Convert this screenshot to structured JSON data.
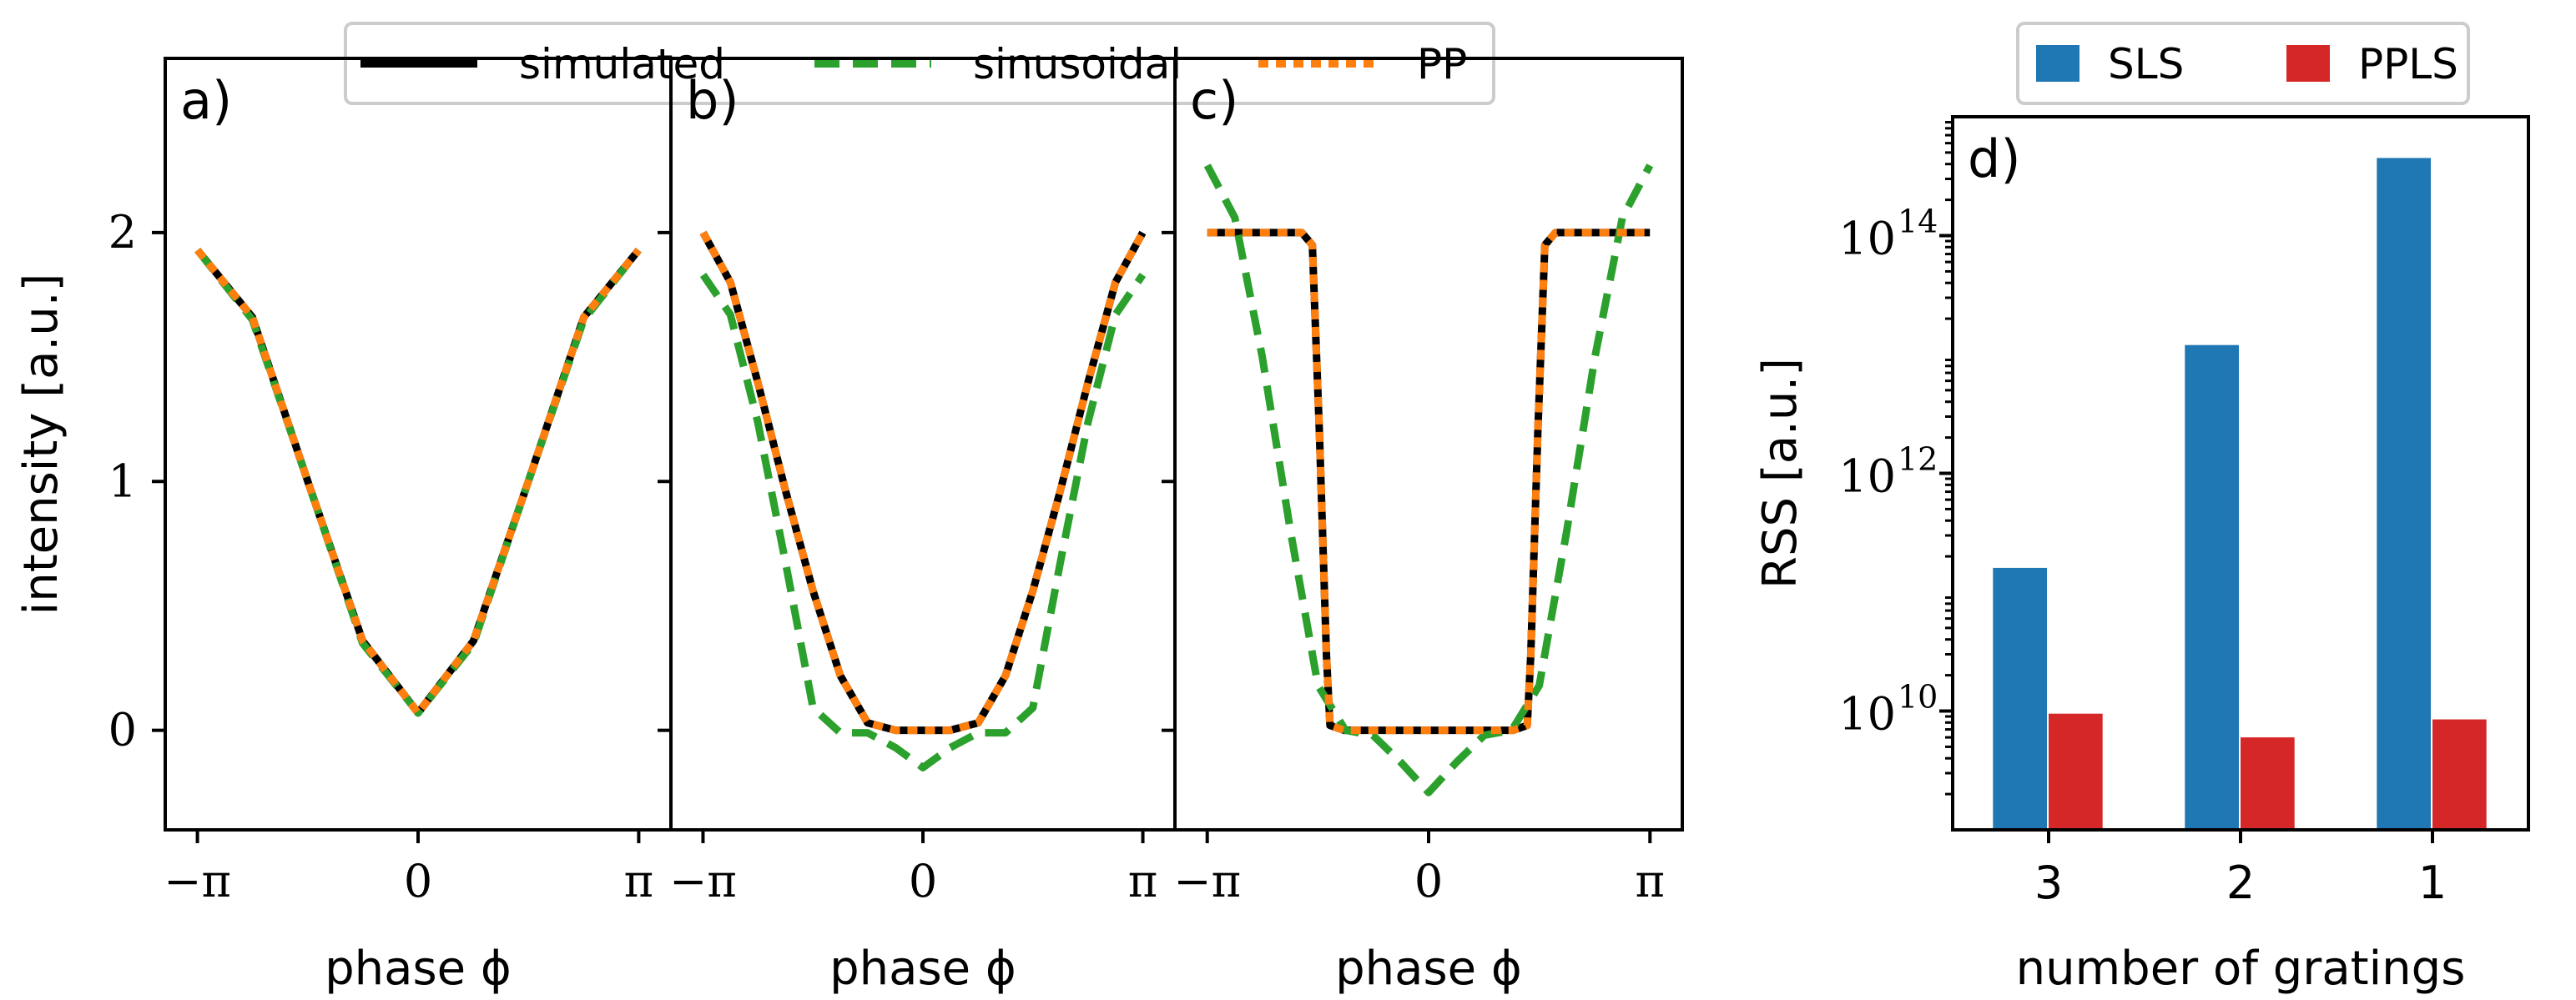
{
  "figure": {
    "left_legend": [
      {
        "label": "simulated",
        "color": "#000000",
        "style": "solid"
      },
      {
        "label": "sinusoidal",
        "color": "#2ca02c",
        "style": "dashed"
      },
      {
        "label": "PP",
        "color": "#ff7f0e",
        "style": "dotted"
      }
    ],
    "right_legend": [
      {
        "label": "SLS",
        "color": "#1f77b4"
      },
      {
        "label": "PPLS",
        "color": "#d62728"
      }
    ]
  },
  "chart_data": [
    {
      "type": "line",
      "panel": "a)",
      "xlabel": "phase ϕ",
      "ylabel": "intensity [a.u.]",
      "xlim": [
        -3.6,
        3.6
      ],
      "ylim": [
        -0.4,
        2.7
      ],
      "xticks": [
        -3.14159,
        0,
        3.14159
      ],
      "xticklabels": [
        "−π",
        "0",
        "π"
      ],
      "yticks": [
        0,
        1,
        2
      ],
      "yticklabels": [
        "0",
        "1",
        "2"
      ],
      "legend_position": "top",
      "series": [
        {
          "name": "simulated",
          "x": [
            -3.14,
            -2.36,
            -1.57,
            -0.79,
            0,
            0.79,
            1.57,
            2.36,
            3.14
          ],
          "y": [
            1.93,
            1.66,
            1.0,
            0.36,
            0.07,
            0.36,
            1.0,
            1.66,
            1.93
          ]
        },
        {
          "name": "sinusoidal",
          "x": [
            -3.14,
            -2.36,
            -1.57,
            -0.79,
            0,
            0.79,
            1.57,
            2.36,
            3.14
          ],
          "y": [
            1.93,
            1.65,
            1.0,
            0.35,
            0.07,
            0.35,
            1.0,
            1.65,
            1.93
          ]
        },
        {
          "name": "PP",
          "x": [
            -3.14,
            -2.36,
            -1.57,
            -0.79,
            0,
            0.79,
            1.57,
            2.36,
            3.14
          ],
          "y": [
            1.93,
            1.66,
            1.0,
            0.36,
            0.07,
            0.36,
            1.0,
            1.66,
            1.93
          ]
        }
      ]
    },
    {
      "type": "line",
      "panel": "b)",
      "xlabel": "phase ϕ",
      "xlim": [
        -3.6,
        3.6
      ],
      "ylim": [
        -0.4,
        2.7
      ],
      "xticks": [
        -3.14159,
        0,
        3.14159
      ],
      "xticklabels": [
        "−π",
        "0",
        "π"
      ],
      "yticks": [
        0,
        1,
        2
      ],
      "series": [
        {
          "name": "simulated",
          "x": [
            -3.14,
            -2.75,
            -2.36,
            -1.96,
            -1.57,
            -1.18,
            -0.79,
            -0.39,
            0,
            0.39,
            0.79,
            1.18,
            1.57,
            1.96,
            2.36,
            2.75,
            3.14
          ],
          "y": [
            2.0,
            1.8,
            1.4,
            0.96,
            0.56,
            0.22,
            0.03,
            0.0,
            0.0,
            0.0,
            0.03,
            0.22,
            0.56,
            0.96,
            1.4,
            1.8,
            2.0
          ]
        },
        {
          "name": "sinusoidal",
          "x": [
            -3.14,
            -2.75,
            -2.36,
            -1.96,
            -1.57,
            -1.18,
            -0.79,
            -0.39,
            0,
            0.39,
            0.79,
            1.18,
            1.57,
            1.96,
            2.36,
            2.75,
            3.14
          ],
          "y": [
            1.83,
            1.67,
            1.24,
            0.67,
            0.09,
            -0.01,
            -0.01,
            -0.07,
            -0.15,
            -0.07,
            -0.01,
            -0.01,
            0.09,
            0.67,
            1.24,
            1.67,
            1.83
          ]
        },
        {
          "name": "PP",
          "x": [
            -3.14,
            -2.75,
            -2.36,
            -1.96,
            -1.57,
            -1.18,
            -0.79,
            -0.39,
            0,
            0.39,
            0.79,
            1.18,
            1.57,
            1.96,
            2.36,
            2.75,
            3.14
          ],
          "y": [
            2.0,
            1.8,
            1.4,
            0.96,
            0.56,
            0.22,
            0.03,
            0.0,
            0.0,
            0.0,
            0.03,
            0.22,
            0.56,
            0.96,
            1.4,
            1.8,
            2.0
          ]
        }
      ]
    },
    {
      "type": "line",
      "panel": "c)",
      "xlabel": "phase ϕ",
      "xlim": [
        -3.6,
        3.6
      ],
      "ylim": [
        -0.4,
        2.7
      ],
      "xticks": [
        -3.14159,
        0,
        3.14159
      ],
      "xticklabels": [
        "−π",
        "0",
        "π"
      ],
      "yticks": [
        0,
        1,
        2
      ],
      "series": [
        {
          "name": "simulated",
          "x": [
            -3.14,
            -1.8,
            -1.65,
            -1.55,
            -1.45,
            -1.4,
            -1.2,
            0,
            1.2,
            1.4,
            1.45,
            1.55,
            1.65,
            1.8,
            3.14
          ],
          "y": [
            2.0,
            2.0,
            1.95,
            1.2,
            0.3,
            0.02,
            0.0,
            0.0,
            0.0,
            0.02,
            0.3,
            1.2,
            1.95,
            2.0,
            2.0
          ]
        },
        {
          "name": "sinusoidal",
          "x": [
            -3.14,
            -2.75,
            -2.36,
            -1.96,
            -1.57,
            -1.18,
            -0.79,
            -0.39,
            0,
            0.39,
            0.79,
            1.18,
            1.57,
            1.96,
            2.36,
            2.75,
            3.14
          ],
          "y": [
            2.27,
            2.06,
            1.5,
            0.8,
            0.18,
            0.0,
            -0.02,
            -0.13,
            -0.25,
            -0.13,
            -0.02,
            0.0,
            0.18,
            0.8,
            1.5,
            2.06,
            2.27
          ]
        },
        {
          "name": "PP",
          "x": [
            -3.14,
            -1.8,
            -1.65,
            -1.55,
            -1.45,
            -1.4,
            -1.2,
            0,
            1.2,
            1.4,
            1.45,
            1.55,
            1.65,
            1.8,
            3.14
          ],
          "y": [
            2.0,
            2.0,
            1.95,
            1.2,
            0.3,
            0.02,
            0.0,
            0.0,
            0.0,
            0.02,
            0.3,
            1.2,
            1.95,
            2.0,
            2.0
          ]
        }
      ]
    },
    {
      "type": "bar",
      "panel": "d)",
      "xlabel": "number of gratings",
      "ylabel": "RSS [a.u.]",
      "yscale": "log",
      "ylim": [
        1000000000.0,
        1000000000000000.0
      ],
      "yticks": [
        10000000000.0,
        1000000000000.0,
        100000000000000.0
      ],
      "yticklabels": [
        "10",
        "10",
        "10"
      ],
      "yticklabel_exponents": [
        "10",
        "12",
        "14"
      ],
      "categories": [
        "3",
        "2",
        "1"
      ],
      "legend_position": "top",
      "series": [
        {
          "name": "SLS",
          "values": [
            160000000000.0,
            12000000000000.0,
            450000000000000.0
          ]
        },
        {
          "name": "PPLS",
          "values": [
            9500000000.0,
            6000000000.0,
            8500000000.0
          ]
        }
      ]
    }
  ]
}
